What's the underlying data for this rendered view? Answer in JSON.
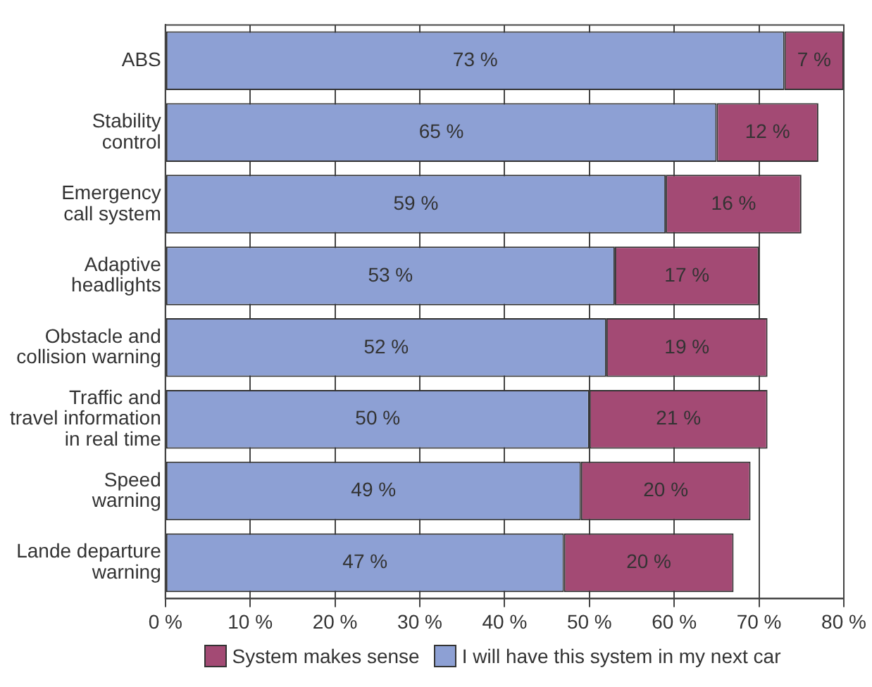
{
  "chart_data": {
    "type": "bar",
    "orientation": "horizontal",
    "stacked": true,
    "categories": [
      "ABS",
      "Stability\ncontrol",
      "Emergency\ncall system",
      "Adaptive\nheadlights",
      "Obstacle and\ncollision warning",
      "Traffic and\ntravel information\nin real time",
      "Speed\nwarning",
      "Lande departure\nwarning"
    ],
    "series": [
      {
        "name": "I will have this system in my next car",
        "color": "#8da0d4",
        "values": [
          73,
          65,
          59,
          53,
          52,
          50,
          49,
          47
        ],
        "value_labels": [
          "73 %",
          "65 %",
          "59 %",
          "53 %",
          "52 %",
          "50 %",
          "49 %",
          "47 %"
        ]
      },
      {
        "name": "System makes sense",
        "color": "#a34a74",
        "values": [
          7,
          12,
          16,
          17,
          19,
          21,
          20,
          20
        ],
        "value_labels": [
          "7 %",
          "12 %",
          "16 %",
          "17 %",
          "19 %",
          "21 %",
          "20 %",
          "20 %"
        ]
      }
    ],
    "xlim": [
      0,
      80
    ],
    "xticks": [
      {
        "value": 0,
        "label": "0 %"
      },
      {
        "value": 10,
        "label": "10 %"
      },
      {
        "value": 20,
        "label": "20 %"
      },
      {
        "value": 30,
        "label": "30 %"
      },
      {
        "value": 40,
        "label": "40 %"
      },
      {
        "value": 50,
        "label": "50 %"
      },
      {
        "value": 60,
        "label": "60 %"
      },
      {
        "value": 70,
        "label": "70 %"
      },
      {
        "value": 80,
        "label": "80 %"
      }
    ],
    "grid": "x",
    "legend": "bottom"
  }
}
